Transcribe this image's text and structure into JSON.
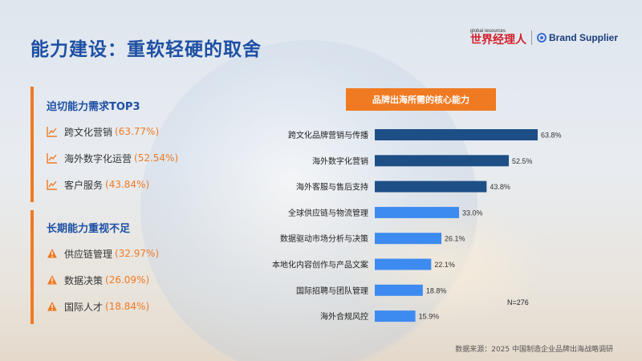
{
  "title": "能力建设：重软轻硬的取舍",
  "logos": {
    "small_text": "global resources",
    "cn_brand": "世界经理人",
    "en_brand": "Brand Supplier"
  },
  "panel1": {
    "title": "迫切能力需求TOP3",
    "icon": "trend-chart-icon",
    "items": [
      {
        "label": "跨文化营销",
        "value": "(63.77%)"
      },
      {
        "label": "海外数字化运营",
        "value": "(52.54%)"
      },
      {
        "label": "客户服务",
        "value": "(43.84%)"
      }
    ]
  },
  "panel2": {
    "title": "长期能力重视不足",
    "icon": "warning-icon",
    "items": [
      {
        "label": "供应链管理",
        "value": "(32.97%)"
      },
      {
        "label": "数据决策",
        "value": "(26.09%)"
      },
      {
        "label": "国际人才",
        "value": "(18.84%)"
      }
    ]
  },
  "chart_data": {
    "type": "bar",
    "orientation": "horizontal",
    "title": "品牌出海所需的核心能力",
    "categories": [
      "跨文化品牌营销与传播",
      "海外数字化营销",
      "海外客服与售后支持",
      "全球供应链与物流管理",
      "数据驱动市场分析与决策",
      "本地化内容创作与产品文案",
      "国际招聘与团队管理",
      "海外合规风控"
    ],
    "values": [
      63.8,
      52.5,
      43.8,
      33.0,
      26.1,
      22.1,
      18.8,
      15.9
    ],
    "value_labels": [
      "63.8%",
      "52.5%",
      "43.8%",
      "33.0%",
      "26.1%",
      "22.1%",
      "18.8%",
      "15.9%"
    ],
    "colors": [
      "#1d4f86",
      "#1d4f86",
      "#1d4f86",
      "#3d8bf0",
      "#3d8bf0",
      "#3d8bf0",
      "#3d8bf0",
      "#3d8bf0"
    ],
    "xlim": [
      0,
      70
    ],
    "grid": false,
    "note": "N=276"
  },
  "source": "数据来源：2025 中国制造企业品牌出海战略调研"
}
